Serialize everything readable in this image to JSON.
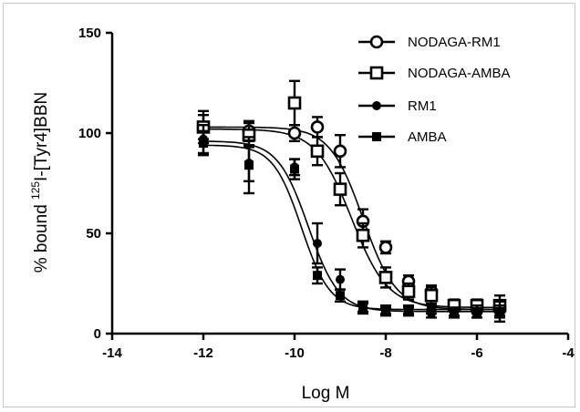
{
  "chart_data": {
    "type": "scatter",
    "xlabel": "Log M",
    "ylabel_parts": {
      "prefix": "% bound ",
      "sup": "125",
      "suffix": "I-[Tyr4]BBN"
    },
    "xlim": [
      -14,
      -4
    ],
    "ylim": [
      0,
      150
    ],
    "xticks": [
      -14,
      -12,
      -10,
      -8,
      -6,
      -4
    ],
    "yticks": [
      0,
      50,
      100,
      150
    ],
    "grid": false,
    "legend_position": "top-right",
    "series": [
      {
        "name": "NODAGA-RM1",
        "marker": "open-circle",
        "x": [
          -12,
          -11,
          -10,
          -9.5,
          -9,
          -8.5,
          -8,
          -7.5,
          -7,
          -6.5,
          -6,
          -5.5
        ],
        "y": [
          103,
          101,
          100,
          103,
          91,
          56,
          43,
          26,
          21,
          13,
          12,
          12
        ],
        "err": [
          6,
          5,
          4,
          5,
          8,
          6,
          3,
          3,
          3,
          2,
          2,
          3
        ],
        "fit": {
          "top": 103,
          "bottom": 12,
          "logEC50": -8.5,
          "hill": 1.2
        }
      },
      {
        "name": "NODAGA-AMBA",
        "marker": "open-square",
        "x": [
          -12,
          -11,
          -10,
          -9.5,
          -9,
          -8.5,
          -8,
          -7.5,
          -7,
          -6.5,
          -6,
          -5.5
        ],
        "y": [
          103,
          99,
          115,
          91,
          72,
          49,
          28,
          21,
          19,
          14,
          14,
          14
        ],
        "err": [
          8,
          6,
          11,
          7,
          8,
          6,
          5,
          4,
          4,
          3,
          3,
          5
        ],
        "fit": {
          "top": 102,
          "bottom": 13,
          "logEC50": -8.75,
          "hill": 1.1
        }
      },
      {
        "name": "RM1",
        "marker": "filled-circle",
        "x": [
          -12,
          -11,
          -10,
          -9.5,
          -9,
          -8.5,
          -8,
          -7.5,
          -7,
          -6.5,
          -6,
          -5.5
        ],
        "y": [
          97,
          85,
          83,
          45,
          27,
          13,
          11,
          11,
          10,
          10,
          10,
          11
        ],
        "err": [
          7,
          9,
          4,
          10,
          5,
          3,
          2,
          2,
          2,
          2,
          2,
          3
        ],
        "fit": {
          "top": 96,
          "bottom": 11,
          "logEC50": -9.7,
          "hill": 1.3
        }
      },
      {
        "name": "AMBA",
        "marker": "filled-square",
        "x": [
          -12,
          -11,
          -10,
          -9.5,
          -9,
          -8.5,
          -8,
          -7.5,
          -7,
          -6.5,
          -6,
          -5.5
        ],
        "y": [
          95,
          84,
          82,
          29,
          19,
          13,
          12,
          12,
          12,
          11,
          11,
          11
        ],
        "err": [
          6,
          14,
          5,
          4,
          3,
          2,
          2,
          2,
          2,
          2,
          3,
          5
        ],
        "fit": {
          "top": 94,
          "bottom": 12,
          "logEC50": -9.85,
          "hill": 1.4
        }
      }
    ]
  }
}
